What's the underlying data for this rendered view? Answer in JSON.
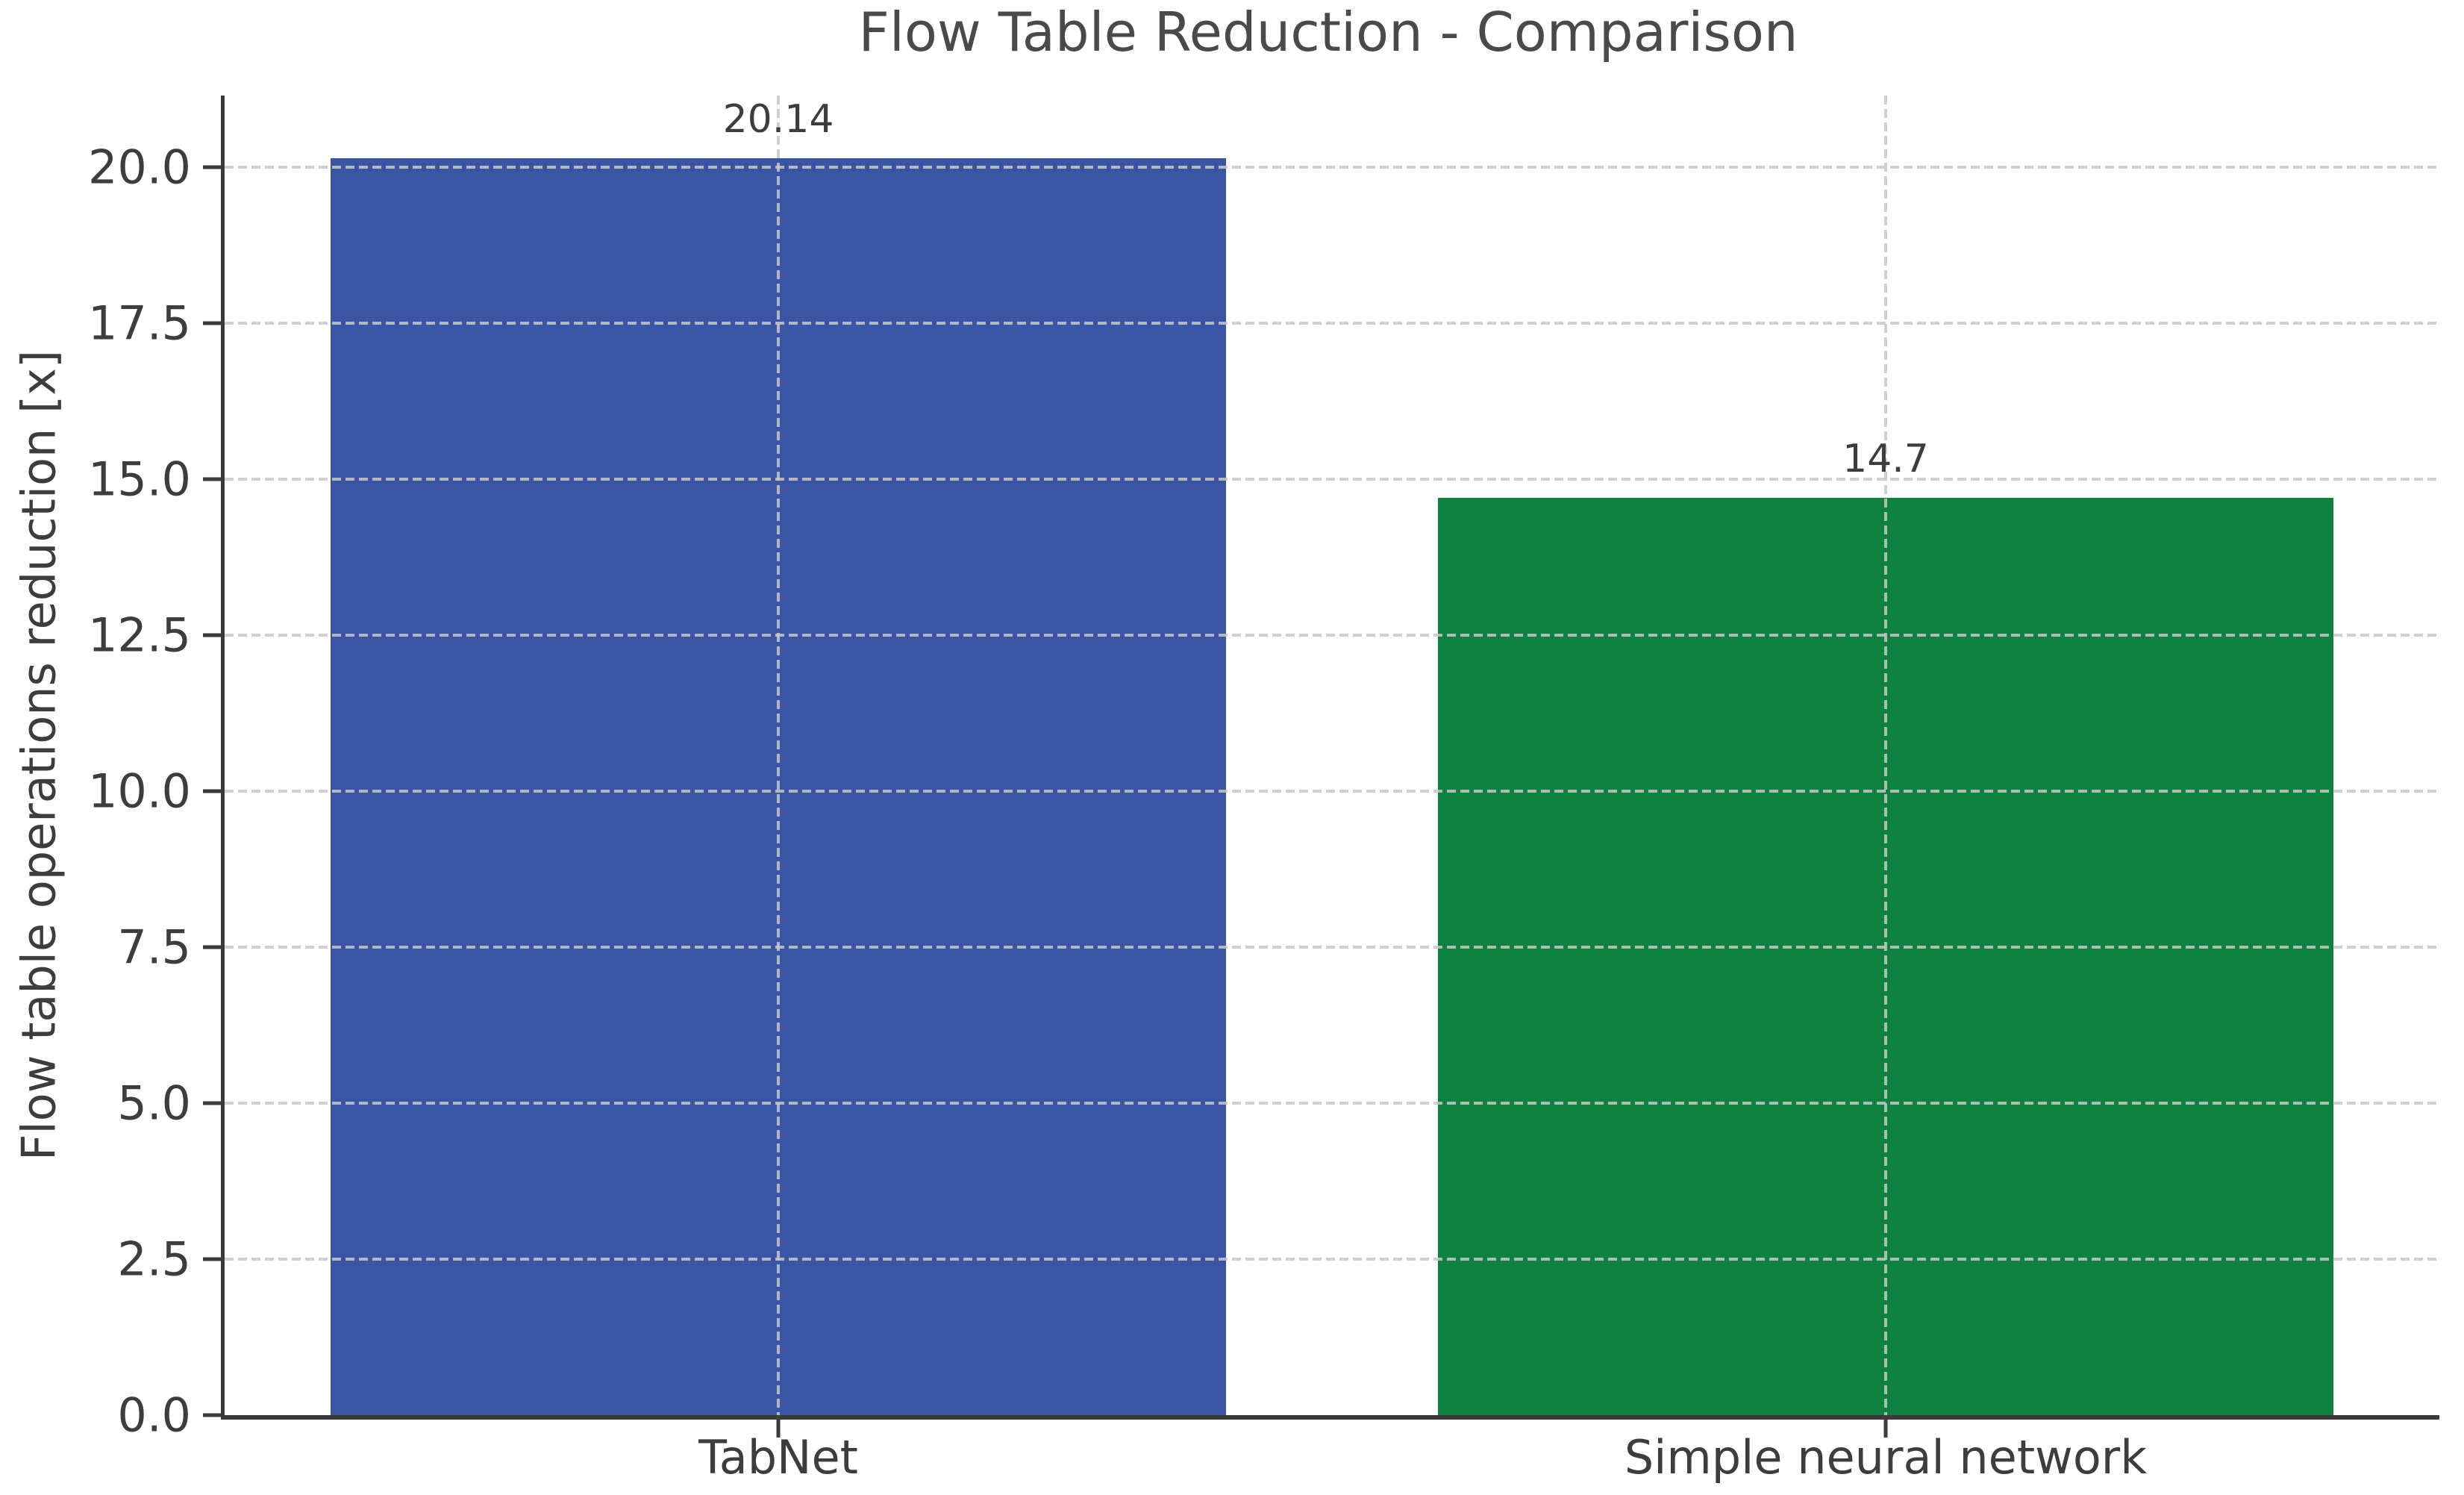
{
  "chart_data": {
    "type": "bar",
    "title": "Flow Table Reduction - Comparison",
    "xlabel": "",
    "ylabel": "Flow table operations reduction [x]",
    "categories": [
      "TabNet",
      "Simple neural network"
    ],
    "values": [
      20.14,
      14.7
    ],
    "value_labels": [
      "20.14",
      "14.7"
    ],
    "bar_colors": [
      "#3a55a4",
      "#0e8040"
    ],
    "yticks": [
      0.0,
      2.5,
      5.0,
      7.5,
      10.0,
      12.5,
      15.0,
      17.5,
      20.0
    ],
    "ytick_labels": [
      "0.0",
      "2.5",
      "5.0",
      "7.5",
      "10.0",
      "12.5",
      "15.0",
      "17.5",
      "20.0"
    ],
    "ylim": [
      0,
      21.15
    ],
    "bar_width_fraction": 0.404,
    "grid": "dashed, horizontal at yticks and vertical at category centers, drawn over bars",
    "legend": "none",
    "spines": "left and bottom only"
  },
  "colors": {
    "background": "#ffffff",
    "text": "#3d3d3d",
    "title_text": "#4a4a4a",
    "spine": "#3b3b3b",
    "gridline": "#c8c8c8",
    "bar_tabnet": "#3a55a4",
    "bar_simple_nn": "#0e8040"
  }
}
